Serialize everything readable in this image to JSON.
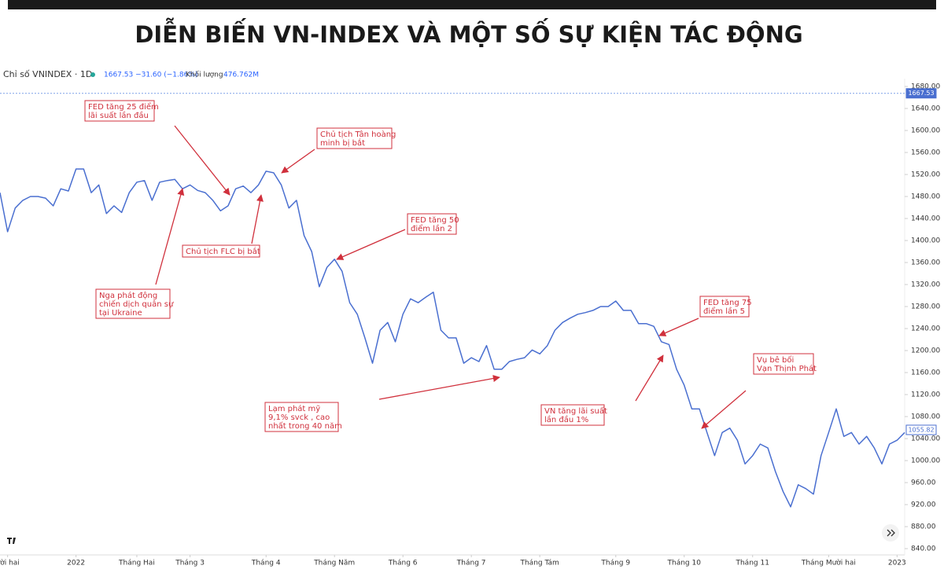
{
  "chart_data": {
    "type": "line",
    "title": "DIỄN BIẾN VN-INDEX VÀ MỘT SỐ SỰ KIỆN TÁC ĐỘNG",
    "symbol": "Chỉ số VNINDEX · 1D",
    "quote": "1667.53 −31.60 (−1.86%)",
    "volume_label": "Khối lượng",
    "volume": "476.762M",
    "series": [
      {
        "name": "VNINDEX",
        "color": "#4a6fd0",
        "values": [
          1487,
          1416,
          1459,
          1473,
          1480,
          1480,
          1477,
          1463,
          1494,
          1490,
          1530,
          1530,
          1487,
          1501,
          1449,
          1463,
          1451,
          1487,
          1506,
          1509,
          1473,
          1506,
          1509,
          1511,
          1494,
          1501,
          1491,
          1487,
          1473,
          1454,
          1463,
          1494,
          1499,
          1487,
          1501,
          1526,
          1523,
          1501,
          1459,
          1473,
          1409,
          1380,
          1316,
          1351,
          1366,
          1344,
          1287,
          1266,
          1223,
          1177,
          1237,
          1251,
          1216,
          1266,
          1294,
          1287,
          1297,
          1306,
          1237,
          1223,
          1223,
          1177,
          1187,
          1180,
          1209,
          1166,
          1166,
          1180,
          1184,
          1187,
          1201,
          1194,
          1209,
          1237,
          1251,
          1259,
          1266,
          1269,
          1273,
          1280,
          1280,
          1290,
          1273,
          1273,
          1249,
          1249,
          1244,
          1216,
          1211,
          1166,
          1137,
          1094,
          1094,
          1051,
          1009,
          1051,
          1059,
          1037,
          994,
          1009,
          1030,
          1023,
          980,
          944,
          916,
          956,
          949,
          939,
          1009,
          1051,
          1094,
          1044,
          1051,
          1030,
          1044,
          1023,
          994,
          1030,
          1037,
          1051
        ]
      }
    ],
    "xlim": [
      0,
      119
    ],
    "xticks": [
      {
        "value": 1,
        "label": "ười hai"
      },
      {
        "value": 10,
        "label": "2022"
      },
      {
        "value": 18,
        "label": "Tháng Hai"
      },
      {
        "value": 25,
        "label": "Tháng 3"
      },
      {
        "value": 35,
        "label": "Tháng 4"
      },
      {
        "value": 44,
        "label": "Tháng Năm"
      },
      {
        "value": 53,
        "label": "Tháng 6"
      },
      {
        "value": 62,
        "label": "Tháng 7"
      },
      {
        "value": 71,
        "label": "Tháng Tám"
      },
      {
        "value": 81,
        "label": "Tháng 9"
      },
      {
        "value": 90,
        "label": "Tháng 10"
      },
      {
        "value": 99,
        "label": "Tháng 11"
      },
      {
        "value": 109,
        "label": "Tháng Mười hai"
      },
      {
        "value": 118,
        "label": "2023"
      }
    ],
    "ylim": [
      840,
      1680
    ],
    "yticks": [
      {
        "value": 840,
        "label": "840.00"
      },
      {
        "value": 880,
        "label": "880.00"
      },
      {
        "value": 920,
        "label": "920.00"
      },
      {
        "value": 960,
        "label": "960.00"
      },
      {
        "value": 1000,
        "label": "1000.00"
      },
      {
        "value": 1040,
        "label": "1040.00"
      },
      {
        "value": 1080,
        "label": "1080.00"
      },
      {
        "value": 1120,
        "label": "1120.00"
      },
      {
        "value": 1160,
        "label": "1160.00"
      },
      {
        "value": 1200,
        "label": "1200.00"
      },
      {
        "value": 1240,
        "label": "1240.00"
      },
      {
        "value": 1280,
        "label": "1280.00"
      },
      {
        "value": 1320,
        "label": "1320.00"
      },
      {
        "value": 1360,
        "label": "1360.00"
      },
      {
        "value": 1400,
        "label": "1400.00"
      },
      {
        "value": 1440,
        "label": "1440.00"
      },
      {
        "value": 1480,
        "label": "1480.00"
      },
      {
        "value": 1520,
        "label": "1520.00"
      },
      {
        "value": 1560,
        "label": "1560.00"
      },
      {
        "value": 1600,
        "label": "1600.00"
      },
      {
        "value": 1640,
        "label": "1640.00"
      },
      {
        "value": 1680,
        "label": "1680.00"
      }
    ],
    "price_markers": [
      1667.53,
      1055.82
    ],
    "grid": false,
    "annotation_color": "#d0303c",
    "annotations": [
      {
        "lines": [
          "FED tăng 25 điểm",
          "lãi suất lần đầu"
        ]
      },
      {
        "lines": [
          "Chủ tịch Tân hoàng",
          "minh bị bắt"
        ]
      },
      {
        "lines": [
          "FED tăng 50",
          "điểm lần 2"
        ]
      },
      {
        "lines": [
          "Chủ tịch FLC bị bắt"
        ]
      },
      {
        "lines": [
          "Nga phát động",
          "chiến dịch quân sự",
          "tại Ukraine"
        ]
      },
      {
        "lines": [
          "Lạm phát mỹ",
          "9,1% svck , cao",
          "nhất trong 40 năm"
        ]
      },
      {
        "lines": [
          "VN tăng lãi suất",
          "lần đầu 1%"
        ]
      },
      {
        "lines": [
          "FED tăng 75",
          "điểm lần 5"
        ]
      },
      {
        "lines": [
          "Vụ bê bối",
          "Vạn Thịnh Phát"
        ]
      }
    ]
  }
}
